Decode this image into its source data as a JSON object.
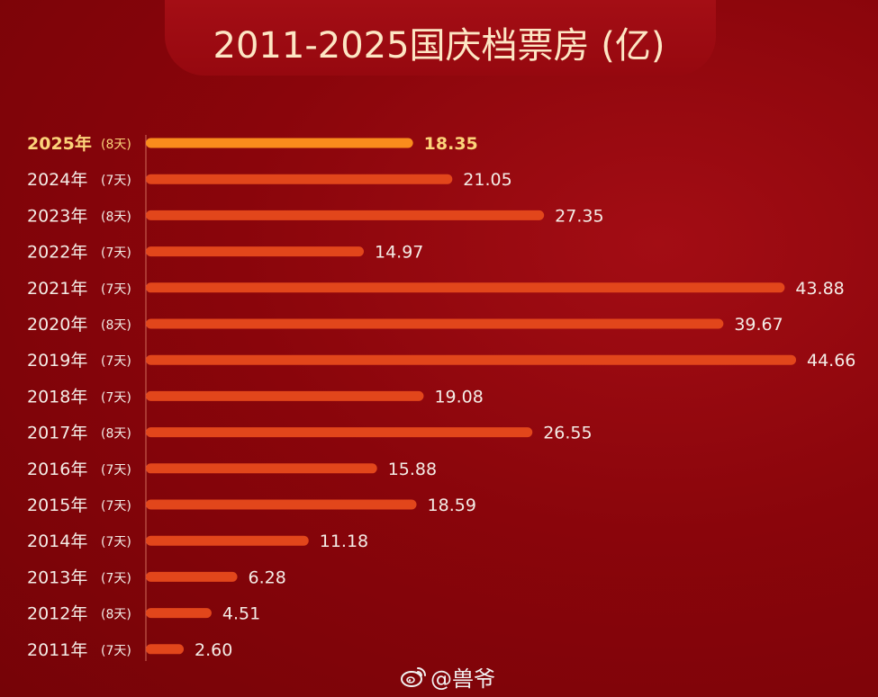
{
  "title": "2011-2025国庆档票房 (亿)",
  "watermark": {
    "handle": "@兽爷",
    "icon": "weibo-icon"
  },
  "colors": {
    "highlight_bar": "#fa8c1c",
    "highlight_text": "#fcd37a",
    "bar": "#e2461b",
    "label_text": "#f4ece6",
    "axis": "#d06a5a"
  },
  "chart_data": {
    "type": "bar",
    "orientation": "horizontal",
    "title": "2011-2025国庆档票房 (亿)",
    "xlabel": "",
    "ylabel": "",
    "grid": false,
    "legend": "none",
    "categories": [
      "2025年",
      "2024年",
      "2023年",
      "2022年",
      "2021年",
      "2020年",
      "2019年",
      "2018年",
      "2017年",
      "2016年",
      "2015年",
      "2014年",
      "2013年",
      "2012年",
      "2011年"
    ],
    "durations": [
      "(8天)",
      "(7天)",
      "(8天)",
      "(7天)",
      "(7天)",
      "(8天)",
      "(7天)",
      "(7天)",
      "(8天)",
      "(7天)",
      "(7天)",
      "(7天)",
      "(7天)",
      "(8天)",
      "(7天)"
    ],
    "values": [
      18.35,
      21.05,
      27.35,
      14.97,
      43.88,
      39.67,
      44.66,
      19.08,
      26.55,
      15.88,
      18.59,
      11.18,
      6.28,
      4.51,
      2.6
    ],
    "value_labels": [
      "18.35",
      "21.05",
      "27.35",
      "14.97",
      "43.88",
      "39.67",
      "44.66",
      "19.08",
      "26.55",
      "15.88",
      "18.59",
      "11.18",
      "6.28",
      "4.51",
      "2.60"
    ],
    "highlight_category": "2025年"
  }
}
